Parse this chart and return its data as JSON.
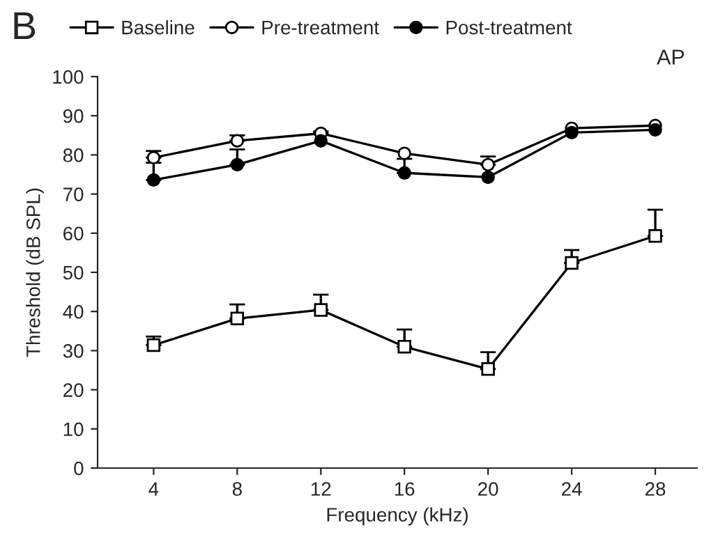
{
  "chart_data": {
    "type": "line",
    "title": "B",
    "xlabel": "Frequency (kHz)",
    "ylabel": "Threshold (dB SPL)",
    "categories": [
      "4",
      "8",
      "12",
      "16",
      "20",
      "24",
      "28"
    ],
    "series": [
      {
        "name": "Baseline",
        "color": "#000000",
        "marker": "square",
        "values": [
          31.4,
          38.2,
          40.4,
          31,
          25.3,
          52.4,
          59.3
        ],
        "errors": [
          [
            31.4,
            33.6
          ],
          [
            38.2,
            41.8
          ],
          [
            40.4,
            44.3
          ],
          [
            31,
            35.4
          ],
          [
            25.3,
            29.6
          ],
          [
            52.4,
            55.7
          ],
          [
            59.3,
            66
          ]
        ]
      },
      {
        "name": "Pre-treatment",
        "color": "#000000",
        "marker": "circle",
        "values": [
          79.3,
          83.6,
          85.5,
          80.4,
          77.5,
          86.8,
          87.5
        ],
        "errors": [
          [
            79.3,
            81
          ],
          [
            83.6,
            85
          ],
          [
            85.5,
            86
          ],
          null,
          [
            77.5,
            79.6
          ],
          null,
          null
        ]
      },
      {
        "name": "Post-treatment",
        "color": "#000000",
        "marker": "circle_filled",
        "values": [
          73.6,
          77.5,
          83.6,
          75.4,
          74.3,
          85.7,
          86.4
        ],
        "errors": [
          [
            73.6,
            78
          ],
          [
            77.5,
            81.4
          ],
          null,
          [
            75.4,
            79
          ],
          null,
          null,
          null
        ]
      }
    ],
    "ylim": [
      0,
      100
    ],
    "yticks": [
      0,
      10,
      20,
      30,
      40,
      50,
      60,
      70,
      80,
      90,
      100
    ],
    "annotations": [
      "AP"
    ],
    "legend": "top",
    "grid": false
  }
}
